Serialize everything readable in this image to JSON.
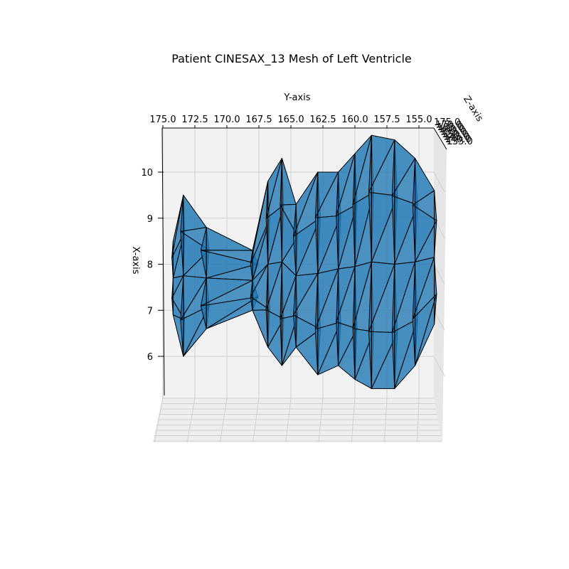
{
  "chart_data": {
    "type": "surface",
    "title": "Patient CINESAX_13 Mesh of Left Ventricle",
    "xlabel": "X-axis",
    "ylabel": "Y-axis",
    "zlabel": "Z-axis",
    "x_ticks": [
      "6",
      "7",
      "8",
      "9",
      "10"
    ],
    "y_ticks": [
      "175.0",
      "172.5",
      "170.0",
      "167.5",
      "165.0",
      "162.5",
      "160.0",
      "157.5",
      "155.0"
    ],
    "z_ticks": [
      "175.0",
      "170.0",
      "165.0",
      "160.0",
      "155.0",
      "150.0",
      "145.0",
      "140.0",
      "135.0"
    ],
    "x_range": [
      5.2,
      10.9
    ],
    "y_range": [
      175.0,
      153.0
    ],
    "grid": true,
    "face_color": "#1f77b4",
    "edge_color": "#000000",
    "columns": [
      {
        "y": 174.2,
        "top": 8.5,
        "bottom": 6.9
      },
      {
        "y": 173.4,
        "top": 9.5,
        "bottom": 6.0
      },
      {
        "y": 171.6,
        "top": 8.8,
        "bottom": 6.6
      },
      {
        "y": 168.0,
        "top": 8.3,
        "bottom": 7.0
      },
      {
        "y": 166.8,
        "top": 9.8,
        "bottom": 6.2
      },
      {
        "y": 165.7,
        "top": 10.3,
        "bottom": 5.8
      },
      {
        "y": 164.6,
        "top": 9.3,
        "bottom": 6.2
      },
      {
        "y": 162.9,
        "top": 10.0,
        "bottom": 5.6
      },
      {
        "y": 161.3,
        "top": 10.0,
        "bottom": 5.8
      },
      {
        "y": 160.0,
        "top": 10.4,
        "bottom": 5.5
      },
      {
        "y": 158.7,
        "top": 10.8,
        "bottom": 5.3
      },
      {
        "y": 156.9,
        "top": 10.7,
        "bottom": 5.3
      },
      {
        "y": 155.3,
        "top": 10.3,
        "bottom": 5.8
      },
      {
        "y": 153.8,
        "top": 9.6,
        "bottom": 6.7
      }
    ]
  }
}
